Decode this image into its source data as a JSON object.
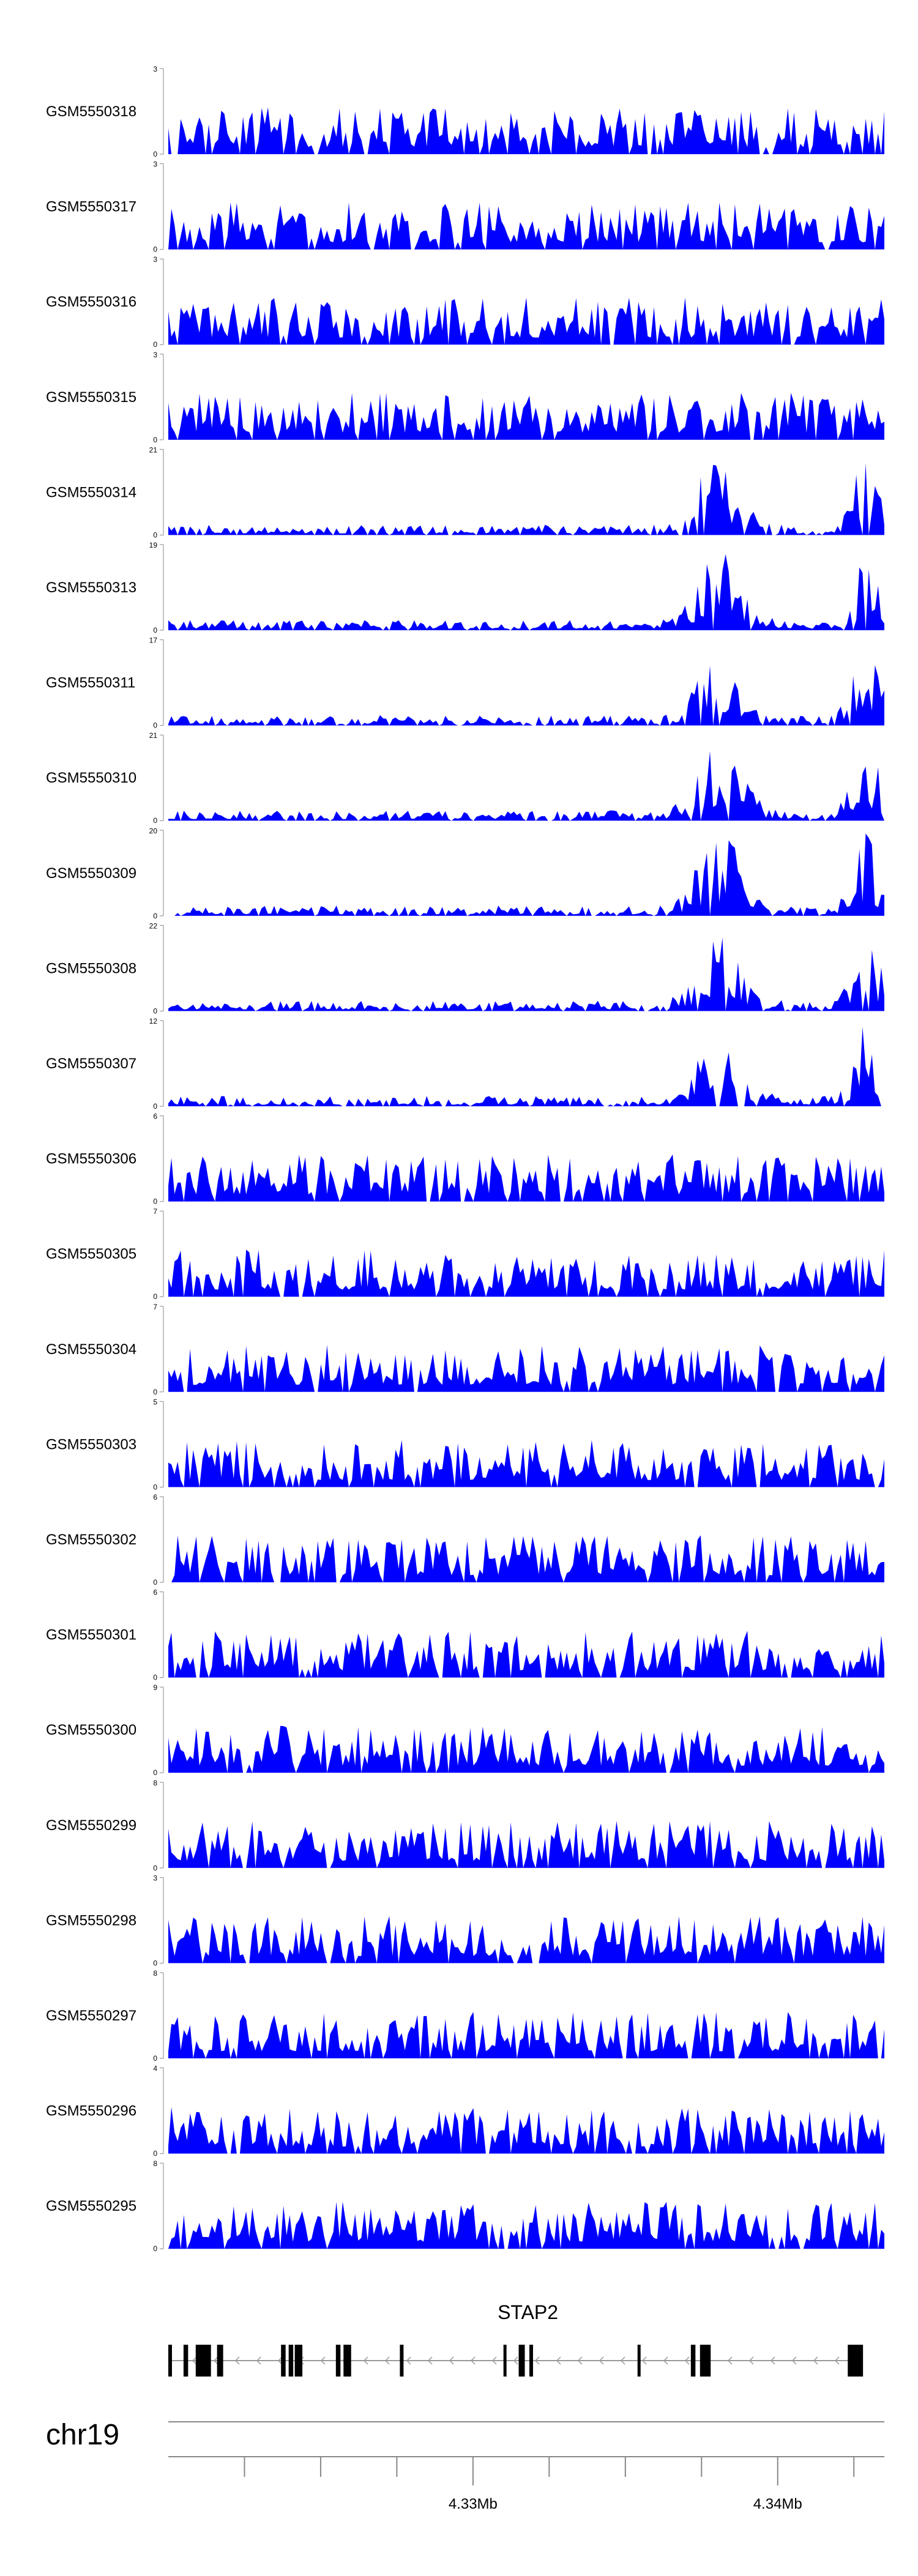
{
  "chart_data": {
    "type": "area",
    "color": "#0000ff",
    "chromosome": "chr19",
    "x_range": [
      4320000,
      4343500
    ],
    "axis_ticks": [
      {
        "pos": 4322500,
        "label": ""
      },
      {
        "pos": 4325000,
        "label": ""
      },
      {
        "pos": 4327500,
        "label": ""
      },
      {
        "pos": 4330000,
        "label": "4.33Mb"
      },
      {
        "pos": 4332500,
        "label": ""
      },
      {
        "pos": 4335000,
        "label": ""
      },
      {
        "pos": 4337500,
        "label": ""
      },
      {
        "pos": 4340000,
        "label": "4.34Mb"
      },
      {
        "pos": 4342500,
        "label": ""
      }
    ],
    "tracks": [
      {
        "name": "GSM5550318",
        "ymax": 3,
        "ymin": 0
      },
      {
        "name": "GSM5550317",
        "ymax": 3,
        "ymin": 0
      },
      {
        "name": "GSM5550316",
        "ymax": 3,
        "ymin": 0
      },
      {
        "name": "GSM5550315",
        "ymax": 3,
        "ymin": 0
      },
      {
        "name": "GSM5550314",
        "ymax": 21,
        "ymin": 0
      },
      {
        "name": "GSM5550313",
        "ymax": 19,
        "ymin": 0
      },
      {
        "name": "GSM5550311",
        "ymax": 17,
        "ymin": 0
      },
      {
        "name": "GSM5550310",
        "ymax": 21,
        "ymin": 0
      },
      {
        "name": "GSM5550309",
        "ymax": 20,
        "ymin": 0
      },
      {
        "name": "GSM5550308",
        "ymax": 22,
        "ymin": 0
      },
      {
        "name": "GSM5550307",
        "ymax": 12,
        "ymin": 0
      },
      {
        "name": "GSM5550306",
        "ymax": 6,
        "ymin": 0
      },
      {
        "name": "GSM5550305",
        "ymax": 7,
        "ymin": 0
      },
      {
        "name": "GSM5550304",
        "ymax": 7,
        "ymin": 0
      },
      {
        "name": "GSM5550303",
        "ymax": 5,
        "ymin": 0
      },
      {
        "name": "GSM5550302",
        "ymax": 6,
        "ymin": 0
      },
      {
        "name": "GSM5550301",
        "ymax": 6,
        "ymin": 0
      },
      {
        "name": "GSM5550300",
        "ymax": 9,
        "ymin": 0
      },
      {
        "name": "GSM5550299",
        "ymax": 8,
        "ymin": 0
      },
      {
        "name": "GSM5550298",
        "ymax": 3,
        "ymin": 0
      },
      {
        "name": "GSM5550297",
        "ymax": 8,
        "ymin": 0
      },
      {
        "name": "GSM5550296",
        "ymax": 4,
        "ymin": 0
      },
      {
        "name": "GSM5550295",
        "ymax": 8,
        "ymin": 0
      }
    ],
    "gene": {
      "name": "STAP2",
      "strand": "-",
      "start": 4320000,
      "end": 4342800,
      "exons": [
        [
          4320000,
          4320120
        ],
        [
          4320500,
          4320650
        ],
        [
          4320900,
          4321400
        ],
        [
          4321600,
          4321800
        ],
        [
          4323700,
          4323850
        ],
        [
          4323950,
          4324100
        ],
        [
          4324150,
          4324400
        ],
        [
          4325500,
          4325650
        ],
        [
          4325750,
          4326000
        ],
        [
          4327600,
          4327720
        ],
        [
          4331000,
          4331100
        ],
        [
          4331500,
          4331700
        ],
        [
          4331850,
          4331970
        ],
        [
          4335400,
          4335500
        ],
        [
          4337150,
          4337300
        ],
        [
          4337450,
          4337800
        ],
        [
          4342300,
          4342800
        ]
      ]
    }
  }
}
